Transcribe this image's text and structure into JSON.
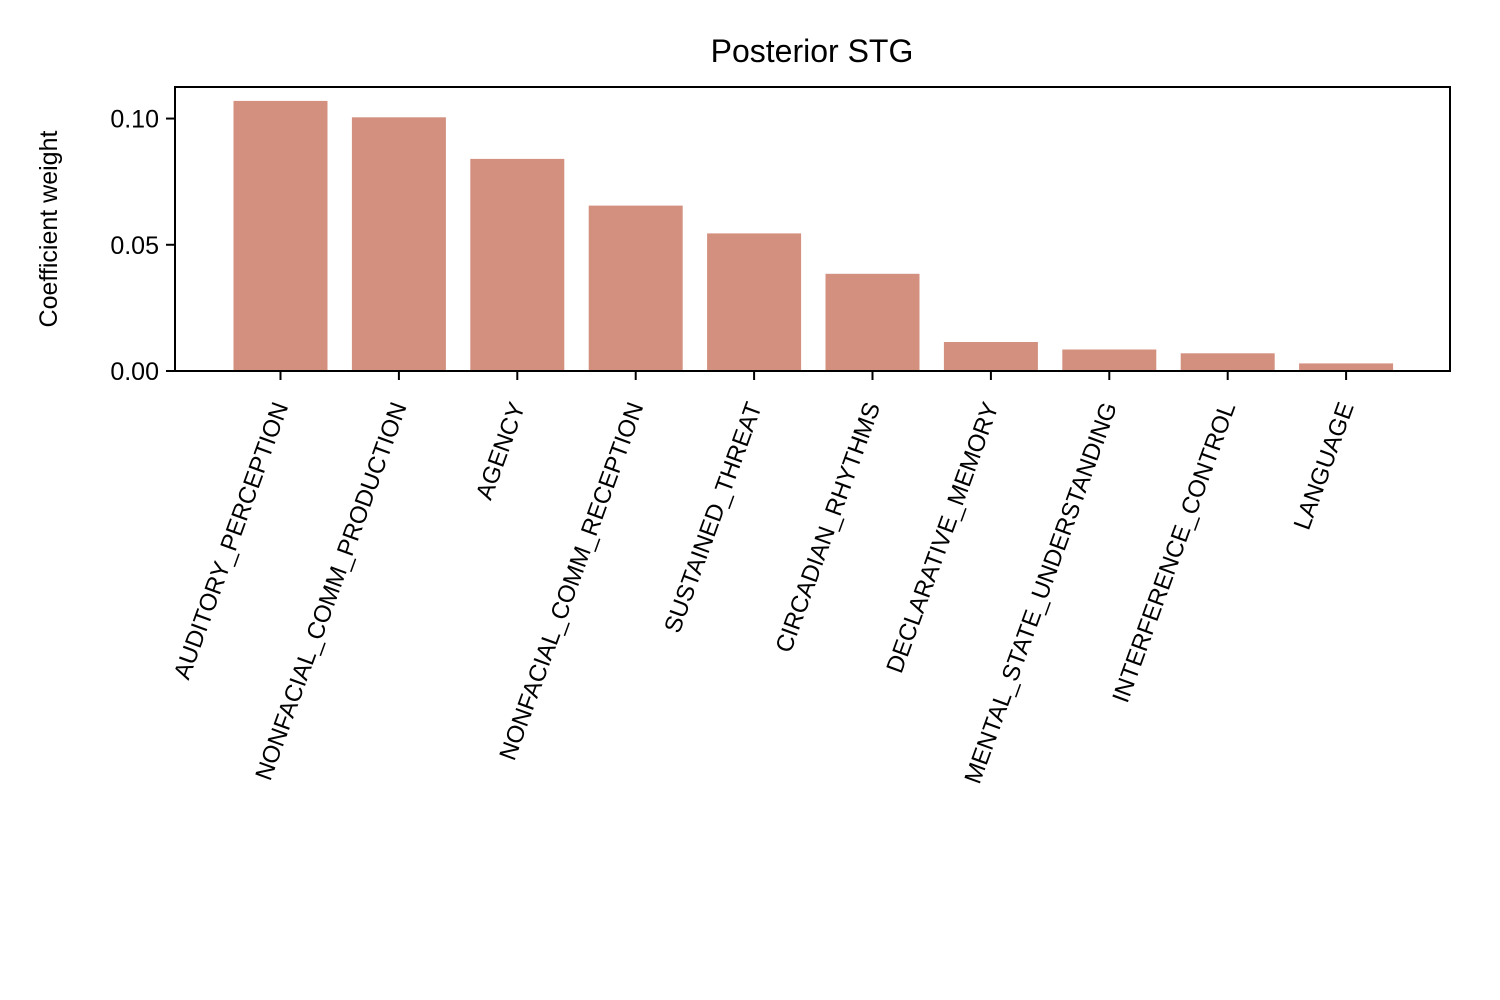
{
  "chart_data": {
    "type": "bar",
    "title": "Posterior STG",
    "xlabel": "",
    "ylabel": "Coefficient weight",
    "categories": [
      "AUDITORY_PERCEPTION",
      "NONFACIAL_COMM_PRODUCTION",
      "AGENCY",
      "NONFACIAL_COMM_RECEPTION",
      "SUSTAINED_THREAT",
      "CIRCADIAN_RHYTHMS",
      "DECLARATIVE_MEMORY",
      "MENTAL_STATE_UNDERSTANDING",
      "INTERFERENCE_CONTROL",
      "LANGUAGE"
    ],
    "values": [
      0.107,
      0.1005,
      0.084,
      0.0655,
      0.0545,
      0.0385,
      0.0115,
      0.0085,
      0.007,
      0.003
    ],
    "ylim": [
      0,
      0.1125
    ],
    "yticks": [
      0.0,
      0.05,
      0.1
    ],
    "ytick_labels": [
      "0.00",
      "0.05",
      "0.10"
    ],
    "bar_color": "#d4907f",
    "grid": false,
    "legend": "none"
  }
}
